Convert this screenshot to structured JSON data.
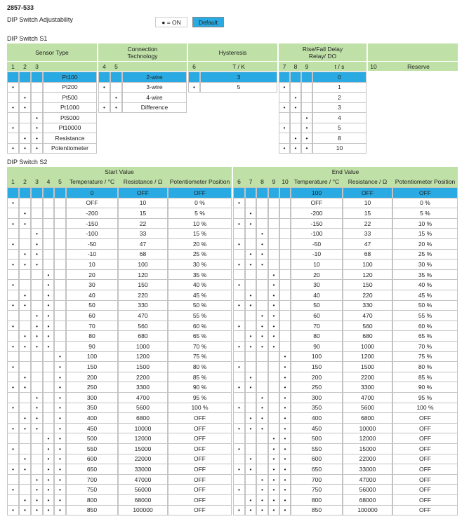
{
  "header": {
    "code": "2857-533",
    "subtitle": "DIP Switch Adjustability"
  },
  "legend": {
    "on": "● = ON",
    "default": "Default"
  },
  "s1": {
    "title": "DIP Switch S1",
    "header_groups": [
      "Sensor Type",
      [
        "Connection",
        "Technology"
      ],
      "Hysteresis",
      [
        "Rise/Fall Delay",
        "Relay/ DO"
      ],
      null
    ],
    "columns": [
      "1",
      "2",
      "3",
      null,
      "4",
      "5",
      null,
      "6",
      "T / K",
      "7",
      "8",
      "9",
      "t / s",
      "10",
      "Reserve"
    ],
    "rows": [
      [
        null,
        null,
        null,
        "Pt100",
        null,
        null,
        "2-wire",
        null,
        "3",
        null,
        null,
        null,
        "0",
        null,
        null
      ],
      [
        "•",
        null,
        null,
        "Pt200",
        "•",
        null,
        "3-wire",
        "•",
        "5",
        "•",
        null,
        null,
        "1",
        null,
        null
      ],
      [
        null,
        "•",
        null,
        "Pt500",
        null,
        "•",
        "4-wire",
        null,
        null,
        null,
        "•",
        null,
        "2",
        null,
        null
      ],
      [
        "•",
        "•",
        null,
        "Pt1000",
        "•",
        "•",
        "Difference",
        null,
        null,
        "•",
        "•",
        null,
        "3",
        null,
        null
      ],
      [
        null,
        null,
        "•",
        "Pt5000",
        null,
        null,
        null,
        null,
        null,
        null,
        null,
        "•",
        "4",
        null,
        null
      ],
      [
        "•",
        null,
        "•",
        "Pt10000",
        null,
        null,
        null,
        null,
        null,
        "•",
        null,
        "•",
        "5",
        null,
        null
      ],
      [
        null,
        "•",
        "•",
        "Resistance",
        null,
        null,
        null,
        null,
        null,
        null,
        "•",
        "•",
        "8",
        null,
        null
      ],
      [
        "•",
        "•",
        "•",
        "Potentiometer",
        null,
        null,
        null,
        null,
        null,
        "•",
        "•",
        "•",
        "10",
        null,
        null
      ]
    ]
  },
  "s2": {
    "title": "DIP Switch S2",
    "header_groups": [
      "Start Value",
      "End Value"
    ],
    "columns": [
      "1",
      "2",
      "3",
      "4",
      "5",
      "Temperature / °C",
      "Resistance / Ω",
      "Potentiometer Position",
      "6",
      "7",
      "8",
      "9",
      "10",
      "Temperature / °C",
      "Resistance / Ω",
      "Potentiometer Position"
    ],
    "rows": [
      [
        null,
        null,
        null,
        null,
        null,
        "0",
        "OFF",
        "OFF",
        null,
        null,
        null,
        null,
        null,
        "100",
        "OFF",
        "OFF"
      ],
      [
        "•",
        null,
        null,
        null,
        null,
        "OFF",
        "10",
        "0 %",
        "•",
        null,
        null,
        null,
        null,
        "OFF",
        "10",
        "0 %"
      ],
      [
        null,
        "•",
        null,
        null,
        null,
        "-200",
        "15",
        "5 %",
        null,
        "•",
        null,
        null,
        null,
        "-200",
        "15",
        "5 %"
      ],
      [
        "•",
        "•",
        null,
        null,
        null,
        "-150",
        "22",
        "10 %",
        "•",
        "•",
        null,
        null,
        null,
        "-150",
        "22",
        "10 %"
      ],
      [
        null,
        null,
        "•",
        null,
        null,
        "-100",
        "33",
        "15 %",
        null,
        null,
        "•",
        null,
        null,
        "-100",
        "33",
        "15 %"
      ],
      [
        "•",
        null,
        "•",
        null,
        null,
        "-50",
        "47",
        "20 %",
        "•",
        null,
        "•",
        null,
        null,
        "-50",
        "47",
        "20 %"
      ],
      [
        null,
        "•",
        "•",
        null,
        null,
        "-10",
        "68",
        "25 %",
        null,
        "•",
        "•",
        null,
        null,
        "-10",
        "68",
        "25 %"
      ],
      [
        "•",
        "•",
        "•",
        null,
        null,
        "10",
        "100",
        "30 %",
        "•",
        "•",
        "•",
        null,
        null,
        "10",
        "100",
        "30 %"
      ],
      [
        null,
        null,
        null,
        "•",
        null,
        "20",
        "120",
        "35 %",
        null,
        null,
        null,
        "•",
        null,
        "20",
        "120",
        "35 %"
      ],
      [
        "•",
        null,
        null,
        "•",
        null,
        "30",
        "150",
        "40 %",
        "•",
        null,
        null,
        "•",
        null,
        "30",
        "150",
        "40 %"
      ],
      [
        null,
        "•",
        null,
        "•",
        null,
        "40",
        "220",
        "45 %",
        null,
        "•",
        null,
        "•",
        null,
        "40",
        "220",
        "45 %"
      ],
      [
        "•",
        "•",
        null,
        "•",
        null,
        "50",
        "330",
        "50 %",
        "•",
        "•",
        null,
        "•",
        null,
        "50",
        "330",
        "50 %"
      ],
      [
        null,
        null,
        "•",
        "•",
        null,
        "60",
        "470",
        "55 %",
        null,
        null,
        "•",
        "•",
        null,
        "60",
        "470",
        "55 %"
      ],
      [
        "•",
        null,
        "•",
        "•",
        null,
        "70",
        "560",
        "60 %",
        "•",
        null,
        "•",
        "•",
        null,
        "70",
        "560",
        "60 %"
      ],
      [
        null,
        "•",
        "•",
        "•",
        null,
        "80",
        "680",
        "65 %",
        null,
        "•",
        "•",
        "•",
        null,
        "80",
        "680",
        "65 %"
      ],
      [
        "•",
        "•",
        "•",
        "•",
        null,
        "90",
        "1000",
        "70 %",
        "•",
        "•",
        "•",
        "•",
        null,
        "90",
        "1000",
        "70 %"
      ],
      [
        null,
        null,
        null,
        null,
        "•",
        "100",
        "1200",
        "75 %",
        null,
        null,
        null,
        null,
        "•",
        "100",
        "1200",
        "75 %"
      ],
      [
        "•",
        null,
        null,
        null,
        "•",
        "150",
        "1500",
        "80 %",
        "•",
        null,
        null,
        null,
        "•",
        "150",
        "1500",
        "80 %"
      ],
      [
        null,
        "•",
        null,
        null,
        "•",
        "200",
        "2200",
        "85 %",
        null,
        "•",
        null,
        null,
        "•",
        "200",
        "2200",
        "85 %"
      ],
      [
        "•",
        "•",
        null,
        null,
        "•",
        "250",
        "3300",
        "90 %",
        "•",
        "•",
        null,
        null,
        "•",
        "250",
        "3300",
        "90 %"
      ],
      [
        null,
        null,
        "•",
        null,
        "•",
        "300",
        "4700",
        "95 %",
        null,
        null,
        "•",
        null,
        "•",
        "300",
        "4700",
        "95 %"
      ],
      [
        "•",
        null,
        "•",
        null,
        "•",
        "350",
        "5600",
        "100 %",
        "•",
        null,
        "•",
        null,
        "•",
        "350",
        "5600",
        "100 %"
      ],
      [
        null,
        "•",
        "•",
        null,
        "•",
        "400",
        "6800",
        "OFF",
        null,
        "•",
        "•",
        null,
        "•",
        "400",
        "6800",
        "OFF"
      ],
      [
        "•",
        "•",
        "•",
        null,
        "•",
        "450",
        "10000",
        "OFF",
        "•",
        "•",
        "•",
        null,
        "•",
        "450",
        "10000",
        "OFF"
      ],
      [
        null,
        null,
        null,
        "•",
        "•",
        "500",
        "12000",
        "OFF",
        null,
        null,
        null,
        "•",
        "•",
        "500",
        "12000",
        "OFF"
      ],
      [
        "•",
        null,
        null,
        "•",
        "•",
        "550",
        "15000",
        "OFF",
        "•",
        null,
        null,
        "•",
        "•",
        "550",
        "15000",
        "OFF"
      ],
      [
        null,
        "•",
        null,
        "•",
        "•",
        "600",
        "22000",
        "OFF",
        null,
        "•",
        null,
        "•",
        "•",
        "600",
        "22000",
        "OFF"
      ],
      [
        "•",
        "•",
        null,
        "•",
        "•",
        "650",
        "33000",
        "OFF",
        "•",
        "•",
        null,
        "•",
        "•",
        "650",
        "33000",
        "OFF"
      ],
      [
        null,
        null,
        "•",
        "•",
        "•",
        "700",
        "47000",
        "OFF",
        null,
        null,
        "•",
        "•",
        "•",
        "700",
        "47000",
        "OFF"
      ],
      [
        "•",
        null,
        "•",
        "•",
        "•",
        "750",
        "56000",
        "OFF",
        "•",
        null,
        "•",
        "•",
        "•",
        "750",
        "56000",
        "OFF"
      ],
      [
        null,
        "•",
        "•",
        "•",
        "•",
        "800",
        "68000",
        "OFF",
        null,
        "•",
        "•",
        "•",
        "•",
        "800",
        "68000",
        "OFF"
      ],
      [
        "•",
        "•",
        "•",
        "•",
        "•",
        "850",
        "100000",
        "OFF",
        "•",
        "•",
        "•",
        "•",
        "•",
        "850",
        "100000",
        "OFF"
      ]
    ]
  }
}
